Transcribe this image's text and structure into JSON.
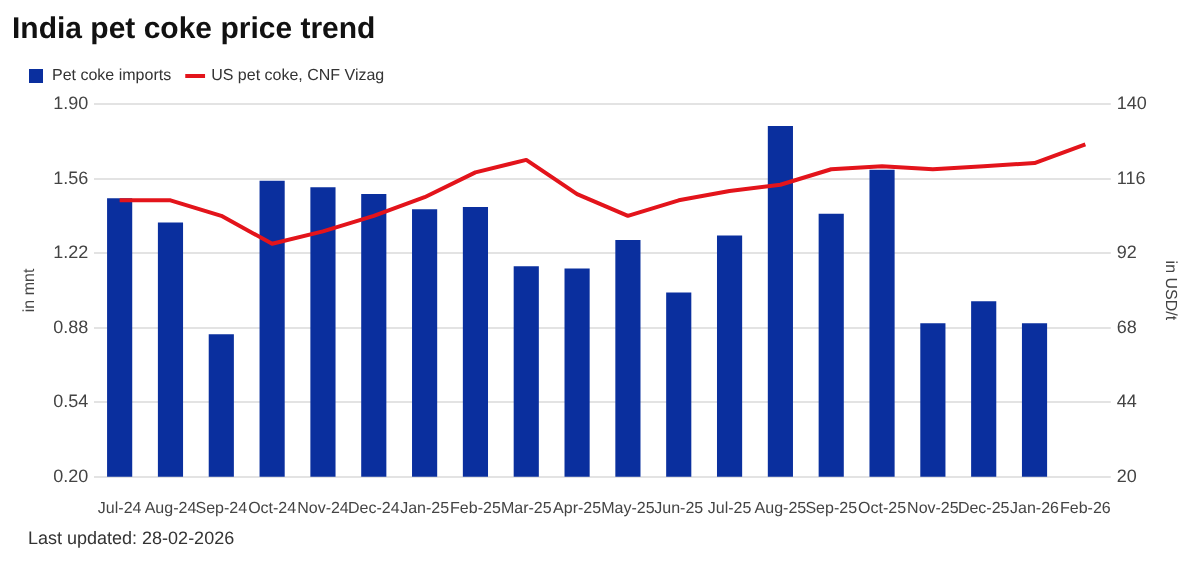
{
  "chart_data": {
    "type": "bar",
    "title": "India pet coke price trend",
    "categories": [
      "Jul-24",
      "Aug-24",
      "Sep-24",
      "Oct-24",
      "Nov-24",
      "Dec-24",
      "Jan-25",
      "Feb-25",
      "Mar-25",
      "Apr-25",
      "May-25",
      "Jun-25",
      "Jul-25",
      "Aug-25",
      "Sep-25",
      "Oct-25",
      "Nov-25",
      "Dec-25",
      "Jan-26",
      "Feb-26"
    ],
    "series": [
      {
        "name": "Pet coke imports",
        "color": "#0a2f9e",
        "values": [
          1.47,
          1.36,
          0.85,
          1.55,
          1.52,
          1.49,
          1.42,
          1.43,
          1.16,
          1.15,
          1.28,
          1.04,
          1.3,
          1.8,
          1.4,
          1.6,
          0.9,
          1.0,
          0.9,
          null
        ]
      },
      {
        "name": "US pet coke, CNF Vizag",
        "type": "line",
        "axis": "y2",
        "color": "#e3141b",
        "values": [
          109,
          109,
          104,
          95,
          99,
          104,
          110,
          118,
          122,
          111,
          104,
          109,
          112,
          114,
          119,
          120,
          119,
          120,
          121,
          127
        ]
      }
    ],
    "ylabel": "in mnt",
    "y2label": "in USD/t",
    "ylim": [
      0.2,
      1.9
    ],
    "yticks": [
      {
        "value": 0.2,
        "label": "0.20"
      },
      {
        "value": 0.54,
        "label": "0.54"
      },
      {
        "value": 0.88,
        "label": "0.88"
      },
      {
        "value": 1.22,
        "label": "1.22"
      },
      {
        "value": 1.56,
        "label": "1.56"
      },
      {
        "value": 1.9,
        "label": "1.90"
      }
    ],
    "y2lim": [
      20,
      140
    ],
    "y2ticks": [
      20,
      44,
      68,
      92,
      116,
      140
    ],
    "grid": "y",
    "legend": "top left",
    "marker": "none",
    "annotations": [
      "Last updated: 28-02-2026"
    ]
  }
}
